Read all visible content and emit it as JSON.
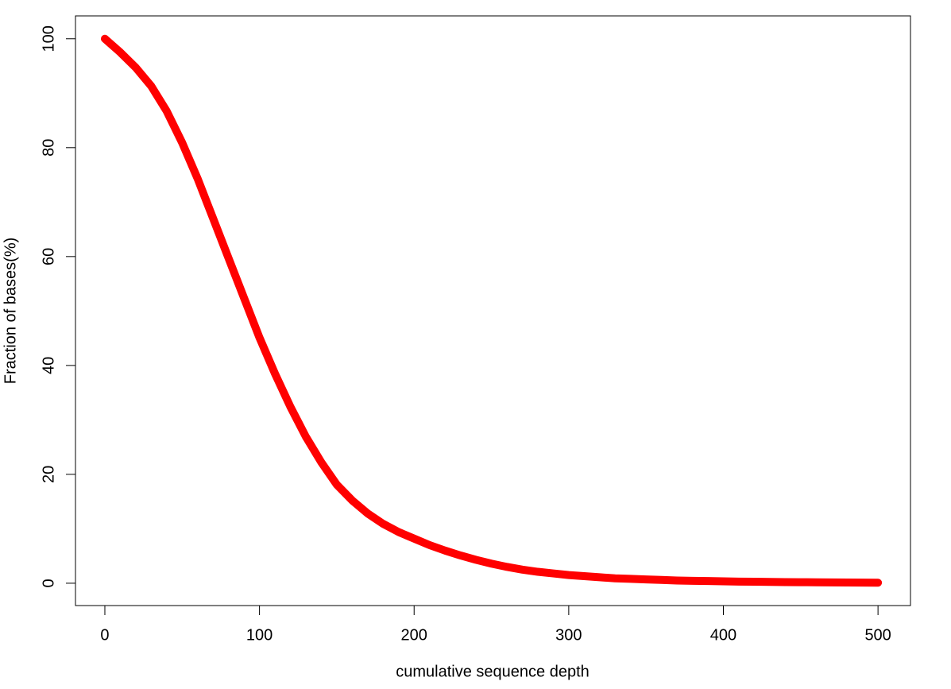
{
  "chart_data": {
    "type": "line",
    "xlabel": "cumulative sequence depth",
    "ylabel": "Fraction of bases(%)",
    "x": [
      0,
      10,
      20,
      30,
      40,
      50,
      60,
      70,
      80,
      90,
      100,
      110,
      120,
      130,
      140,
      150,
      160,
      170,
      180,
      190,
      200,
      210,
      220,
      230,
      240,
      250,
      260,
      270,
      280,
      290,
      300,
      310,
      320,
      330,
      340,
      350,
      360,
      370,
      380,
      390,
      400,
      410,
      420,
      430,
      440,
      450,
      460,
      470,
      480,
      490,
      500
    ],
    "values": [
      100,
      97.5,
      94.7,
      91.3,
      86.7,
      80.9,
      74.3,
      67,
      59.7,
      52.4,
      45.1,
      38.5,
      32.4,
      26.9,
      22.2,
      18.1,
      15.2,
      12.8,
      10.9,
      9.4,
      8.2,
      7.0,
      6.0,
      5.1,
      4.3,
      3.6,
      3.0,
      2.5,
      2.1,
      1.8,
      1.5,
      1.3,
      1.1,
      0.9,
      0.8,
      0.7,
      0.6,
      0.5,
      0.45,
      0.4,
      0.35,
      0.3,
      0.27,
      0.24,
      0.21,
      0.19,
      0.17,
      0.15,
      0.13,
      0.12,
      0.1
    ],
    "color": "#ff0000",
    "xlim": [
      -19,
      521
    ],
    "ylim": [
      -4.1,
      104.2
    ],
    "xticks": [
      0,
      100,
      200,
      300,
      400,
      500
    ],
    "yticks": [
      0,
      20,
      40,
      60,
      80,
      100
    ],
    "grid": false
  }
}
